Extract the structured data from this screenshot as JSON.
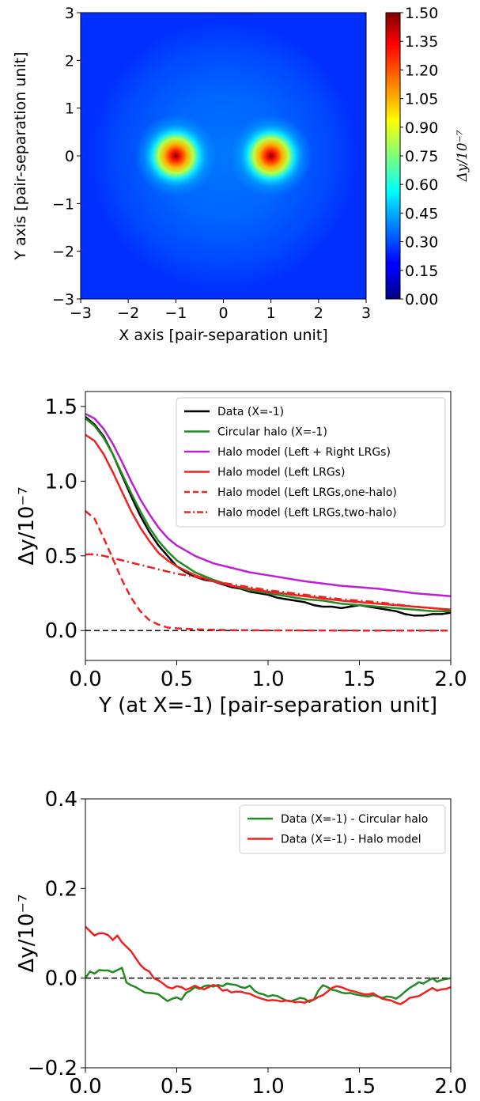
{
  "chart_data": [
    {
      "type": "heatmap",
      "xlabel": "X axis [pair-separation unit]",
      "ylabel": "Y axis [pair-separation unit]",
      "xlim": [
        -3,
        3
      ],
      "ylim": [
        -3,
        3
      ],
      "xticks": [
        "−3",
        "−2",
        "−1",
        "0",
        "1",
        "2",
        "3"
      ],
      "yticks": [
        "3",
        "2",
        "1",
        "0",
        "−1",
        "−2",
        "−3"
      ],
      "peaks": [
        {
          "x": -1,
          "y": 0,
          "value": 1.5
        },
        {
          "x": 1,
          "y": 0,
          "value": 1.5
        }
      ],
      "background_value": 0.3,
      "colorbar": {
        "label": "Δy/10⁻⁷",
        "range": [
          0,
          1.5
        ],
        "ticks": [
          "1.50",
          "1.35",
          "1.20",
          "1.05",
          "0.90",
          "0.75",
          "0.60",
          "0.45",
          "0.30",
          "0.15",
          "0.00"
        ]
      }
    },
    {
      "type": "line",
      "xlabel": "Y (at X=-1) [pair-separation unit]",
      "ylabel": "Δy/10⁻⁷",
      "xlim": [
        0,
        2
      ],
      "ylim": [
        -0.2,
        1.6
      ],
      "xticks": [
        "0.0",
        "0.5",
        "1.0",
        "1.5",
        "2.0"
      ],
      "yticks": [
        "0.0",
        "0.5",
        "1.0",
        "1.5"
      ],
      "legend": "top-right",
      "series": [
        {
          "name": "Data (X=-1)",
          "color": "#000000",
          "style": "solid",
          "x": [
            0,
            0.05,
            0.1,
            0.15,
            0.2,
            0.25,
            0.3,
            0.35,
            0.4,
            0.45,
            0.5,
            0.55,
            0.6,
            0.65,
            0.7,
            0.75,
            0.8,
            0.85,
            0.9,
            0.95,
            1.0,
            1.05,
            1.1,
            1.15,
            1.2,
            1.25,
            1.3,
            1.35,
            1.4,
            1.45,
            1.5,
            1.55,
            1.6,
            1.65,
            1.7,
            1.75,
            1.8,
            1.85,
            1.9,
            1.95,
            2.0
          ],
          "y": [
            1.43,
            1.38,
            1.3,
            1.18,
            1.04,
            0.9,
            0.77,
            0.66,
            0.57,
            0.5,
            0.43,
            0.39,
            0.36,
            0.34,
            0.33,
            0.31,
            0.29,
            0.28,
            0.26,
            0.25,
            0.24,
            0.22,
            0.21,
            0.2,
            0.19,
            0.17,
            0.16,
            0.16,
            0.15,
            0.16,
            0.17,
            0.16,
            0.15,
            0.14,
            0.13,
            0.11,
            0.1,
            0.1,
            0.11,
            0.11,
            0.12
          ]
        },
        {
          "name": "Circular halo (X=-1)",
          "color": "#228b22",
          "style": "solid",
          "x": [
            0,
            0.05,
            0.1,
            0.15,
            0.2,
            0.25,
            0.3,
            0.35,
            0.4,
            0.45,
            0.5,
            0.6,
            0.7,
            0.8,
            0.9,
            1.0,
            1.1,
            1.2,
            1.3,
            1.4,
            1.5,
            1.6,
            1.7,
            1.8,
            1.9,
            2.0
          ],
          "y": [
            1.42,
            1.37,
            1.29,
            1.18,
            1.05,
            0.92,
            0.8,
            0.69,
            0.6,
            0.53,
            0.47,
            0.39,
            0.34,
            0.3,
            0.27,
            0.25,
            0.23,
            0.21,
            0.2,
            0.18,
            0.17,
            0.16,
            0.15,
            0.14,
            0.13,
            0.13
          ]
        },
        {
          "name": "Halo model (Left + Right LRGs)",
          "color": "#bf1fd4",
          "style": "solid",
          "x": [
            0,
            0.05,
            0.1,
            0.15,
            0.2,
            0.25,
            0.3,
            0.35,
            0.4,
            0.45,
            0.5,
            0.6,
            0.7,
            0.8,
            0.9,
            1.0,
            1.2,
            1.4,
            1.6,
            1.8,
            2.0
          ],
          "y": [
            1.45,
            1.42,
            1.35,
            1.25,
            1.13,
            1.0,
            0.88,
            0.78,
            0.69,
            0.62,
            0.57,
            0.5,
            0.45,
            0.42,
            0.39,
            0.37,
            0.33,
            0.3,
            0.28,
            0.25,
            0.23
          ]
        },
        {
          "name": "Halo model (Left LRGs)",
          "color": "#ee2222",
          "style": "solid",
          "x": [
            0,
            0.05,
            0.1,
            0.15,
            0.2,
            0.25,
            0.3,
            0.35,
            0.4,
            0.45,
            0.5,
            0.6,
            0.7,
            0.8,
            0.9,
            1.0,
            1.2,
            1.4,
            1.6,
            1.8,
            2.0
          ],
          "y": [
            1.31,
            1.27,
            1.18,
            1.06,
            0.93,
            0.8,
            0.69,
            0.6,
            0.52,
            0.47,
            0.43,
            0.37,
            0.33,
            0.3,
            0.28,
            0.26,
            0.23,
            0.2,
            0.18,
            0.16,
            0.14
          ]
        },
        {
          "name": "Halo model (Left LRGs,one-halo)",
          "color": "#ee2222",
          "style": "dashed",
          "x": [
            0,
            0.05,
            0.1,
            0.15,
            0.2,
            0.25,
            0.3,
            0.35,
            0.4,
            0.45,
            0.5,
            0.6,
            0.7,
            0.8,
            0.9,
            1.0,
            1.5,
            2.0
          ],
          "y": [
            0.8,
            0.75,
            0.62,
            0.48,
            0.34,
            0.22,
            0.13,
            0.07,
            0.04,
            0.02,
            0.015,
            0.008,
            0.005,
            0.003,
            0.002,
            0.001,
            0.0,
            0.0
          ]
        },
        {
          "name": "Halo model (Left LRGs,two-halo)",
          "color": "#ee2222",
          "style": "dashdot",
          "x": [
            0,
            0.05,
            0.1,
            0.2,
            0.3,
            0.4,
            0.5,
            0.6,
            0.7,
            0.8,
            1.0,
            1.2,
            1.4,
            1.6,
            1.8,
            2.0
          ],
          "y": [
            0.51,
            0.51,
            0.5,
            0.47,
            0.44,
            0.41,
            0.38,
            0.36,
            0.33,
            0.31,
            0.27,
            0.24,
            0.21,
            0.19,
            0.16,
            0.14
          ]
        }
      ],
      "reference_line": {
        "y": 0,
        "color": "#000000",
        "style": "dashed"
      }
    },
    {
      "type": "line",
      "xlabel": "Y (at X=-1) [pair-separation unit]",
      "ylabel": "Δy/10⁻⁷",
      "xlim": [
        0,
        2
      ],
      "ylim": [
        -0.2,
        0.4
      ],
      "xticks": [
        "0.0",
        "0.5",
        "1.0",
        "1.5",
        "2.0"
      ],
      "yticks": [
        "0.4",
        "0.2",
        "0.0",
        "−0.2"
      ],
      "legend": "top-right",
      "series": [
        {
          "name": "Data (X=-1) - Circular halo",
          "color": "#228b22",
          "style": "solid",
          "x": [
            0,
            0.025,
            0.05,
            0.075,
            0.1,
            0.125,
            0.15,
            0.175,
            0.2,
            0.225,
            0.25,
            0.275,
            0.3,
            0.325,
            0.35,
            0.375,
            0.4,
            0.425,
            0.45,
            0.475,
            0.5,
            0.525,
            0.55,
            0.575,
            0.6,
            0.625,
            0.65,
            0.675,
            0.7,
            0.725,
            0.75,
            0.775,
            0.8,
            0.825,
            0.85,
            0.875,
            0.9,
            0.925,
            0.95,
            0.975,
            1.0,
            1.025,
            1.05,
            1.075,
            1.1,
            1.125,
            1.15,
            1.175,
            1.2,
            1.225,
            1.25,
            1.275,
            1.3,
            1.325,
            1.35,
            1.375,
            1.4,
            1.425,
            1.45,
            1.475,
            1.5,
            1.525,
            1.55,
            1.575,
            1.6,
            1.625,
            1.65,
            1.675,
            1.7,
            1.725,
            1.75,
            1.775,
            1.8,
            1.825,
            1.85,
            1.875,
            1.9,
            1.925,
            1.95,
            1.975,
            2.0
          ],
          "y": [
            0.0,
            0.015,
            0.01,
            0.018,
            0.017,
            0.017,
            0.013,
            0.018,
            0.023,
            -0.01,
            -0.016,
            -0.02,
            -0.026,
            -0.032,
            -0.033,
            -0.034,
            -0.036,
            -0.044,
            -0.051,
            -0.046,
            -0.043,
            -0.048,
            -0.033,
            -0.028,
            -0.02,
            -0.024,
            -0.018,
            -0.016,
            -0.019,
            -0.015,
            -0.018,
            -0.012,
            -0.014,
            -0.015,
            -0.02,
            -0.022,
            -0.017,
            -0.028,
            -0.034,
            -0.036,
            -0.041,
            -0.038,
            -0.04,
            -0.045,
            -0.05,
            -0.052,
            -0.048,
            -0.044,
            -0.046,
            -0.053,
            -0.048,
            -0.028,
            -0.016,
            -0.02,
            -0.026,
            -0.028,
            -0.032,
            -0.034,
            -0.033,
            -0.036,
            -0.038,
            -0.04,
            -0.041,
            -0.038,
            -0.041,
            -0.044,
            -0.041,
            -0.042,
            -0.046,
            -0.039,
            -0.03,
            -0.022,
            -0.016,
            -0.009,
            -0.012,
            -0.006,
            0.0,
            -0.008,
            -0.004,
            -0.002,
            0.0
          ]
        },
        {
          "name": "Data (X=-1) - Halo model",
          "color": "#ee2222",
          "style": "solid",
          "x": [
            0,
            0.025,
            0.05,
            0.075,
            0.1,
            0.125,
            0.15,
            0.175,
            0.2,
            0.225,
            0.25,
            0.275,
            0.3,
            0.325,
            0.35,
            0.375,
            0.4,
            0.425,
            0.45,
            0.475,
            0.5,
            0.525,
            0.55,
            0.575,
            0.6,
            0.625,
            0.65,
            0.675,
            0.7,
            0.725,
            0.75,
            0.775,
            0.8,
            0.825,
            0.85,
            0.875,
            0.9,
            0.925,
            0.95,
            0.975,
            1.0,
            1.025,
            1.05,
            1.075,
            1.1,
            1.125,
            1.15,
            1.175,
            1.2,
            1.225,
            1.25,
            1.275,
            1.3,
            1.325,
            1.35,
            1.375,
            1.4,
            1.425,
            1.45,
            1.475,
            1.5,
            1.525,
            1.55,
            1.575,
            1.6,
            1.625,
            1.65,
            1.675,
            1.7,
            1.725,
            1.75,
            1.775,
            1.8,
            1.825,
            1.85,
            1.875,
            1.9,
            1.925,
            1.95,
            1.975,
            2.0
          ],
          "y": [
            0.115,
            0.105,
            0.095,
            0.1,
            0.1,
            0.096,
            0.085,
            0.095,
            0.08,
            0.07,
            0.06,
            0.045,
            0.03,
            0.02,
            0.015,
            0.0,
            -0.005,
            -0.012,
            -0.02,
            -0.023,
            -0.018,
            -0.02,
            -0.026,
            -0.022,
            -0.017,
            -0.022,
            -0.025,
            -0.02,
            -0.015,
            -0.018,
            -0.028,
            -0.026,
            -0.032,
            -0.03,
            -0.03,
            -0.033,
            -0.035,
            -0.04,
            -0.044,
            -0.047,
            -0.05,
            -0.049,
            -0.05,
            -0.052,
            -0.05,
            -0.051,
            -0.054,
            -0.053,
            -0.055,
            -0.05,
            -0.048,
            -0.042,
            -0.038,
            -0.03,
            -0.022,
            -0.018,
            -0.02,
            -0.024,
            -0.028,
            -0.03,
            -0.033,
            -0.036,
            -0.036,
            -0.034,
            -0.04,
            -0.046,
            -0.048,
            -0.05,
            -0.055,
            -0.058,
            -0.052,
            -0.044,
            -0.042,
            -0.04,
            -0.034,
            -0.028,
            -0.022,
            -0.028,
            -0.025,
            -0.024,
            -0.02
          ]
        }
      ],
      "reference_line": {
        "y": 0,
        "color": "#000000",
        "style": "dashed"
      }
    }
  ]
}
